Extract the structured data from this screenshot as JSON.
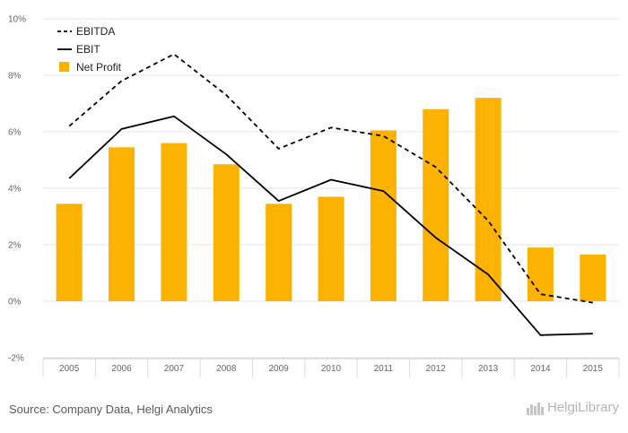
{
  "chart_data": {
    "type": "bar",
    "categories": [
      "2005",
      "2006",
      "2007",
      "2008",
      "2009",
      "2010",
      "2011",
      "2012",
      "2013",
      "2014",
      "2015"
    ],
    "series": [
      {
        "name": "Net Profit",
        "kind": "bar",
        "color": "#FBB200",
        "values": [
          3.45,
          5.45,
          5.6,
          4.85,
          3.45,
          3.7,
          6.05,
          6.8,
          7.2,
          1.9,
          1.65
        ]
      },
      {
        "name": "EBITDA",
        "kind": "line",
        "dash": "dashed",
        "color": "#000000",
        "values": [
          6.2,
          7.8,
          8.75,
          7.3,
          5.4,
          6.15,
          5.85,
          4.75,
          2.85,
          0.25,
          -0.05
        ]
      },
      {
        "name": "EBIT",
        "kind": "line",
        "dash": "solid",
        "color": "#000000",
        "values": [
          4.35,
          6.1,
          6.55,
          5.2,
          3.55,
          4.3,
          3.9,
          2.25,
          0.95,
          -1.2,
          -1.15
        ]
      }
    ],
    "ylim": [
      -2,
      10
    ],
    "yticks": [
      "-2%",
      "0%",
      "2%",
      "4%",
      "6%",
      "8%",
      "10%"
    ],
    "ytick_values": [
      -2,
      0,
      2,
      4,
      6,
      8,
      10
    ],
    "legend": [
      "EBITDA",
      "EBIT",
      "Net Profit"
    ],
    "legend_position": "top-left",
    "grid": true
  },
  "footer": {
    "source": "Source: Company Data, Helgi Analytics",
    "brand": "HelgiLibrary"
  }
}
